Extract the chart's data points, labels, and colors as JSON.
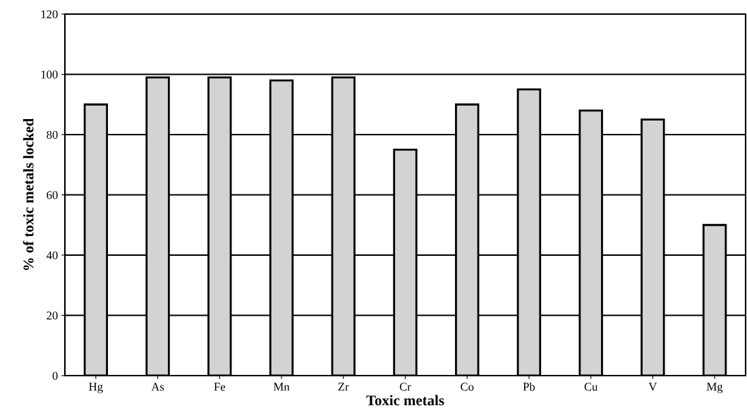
{
  "chart_data": {
    "type": "bar",
    "xlabel": "Toxic metals",
    "ylabel": "% of toxic metals locked",
    "categories": [
      "Hg",
      "As",
      "Fe",
      "Mn",
      "Zr",
      "Cr",
      "Co",
      "Pb",
      "Cu",
      "V",
      "Mg"
    ],
    "values": [
      90,
      99,
      99,
      98,
      99,
      75,
      90,
      95,
      88,
      85,
      50
    ],
    "color": "#d3d3d3",
    "ylim": [
      0,
      120
    ],
    "yticks": [
      0,
      20,
      40,
      60,
      80,
      100,
      120
    ],
    "grid": "y"
  }
}
